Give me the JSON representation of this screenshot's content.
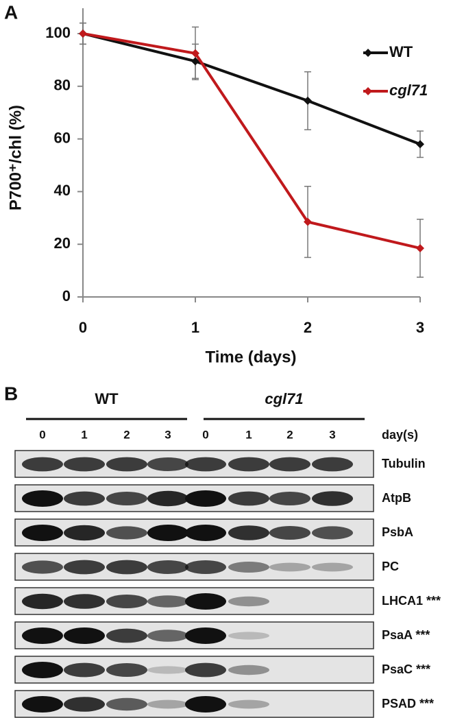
{
  "panel_a": {
    "label": "A"
  },
  "chart_data": {
    "type": "line",
    "x_label": "Time (days)",
    "y_label": "P700⁺/chl (%)",
    "x": [
      0,
      1,
      2,
      3
    ],
    "xlim": [
      0,
      3
    ],
    "xticks": [
      0,
      1,
      2,
      3
    ],
    "ylim": [
      0,
      110
    ],
    "yticks": [
      0,
      20,
      40,
      60,
      80,
      100
    ],
    "series": [
      {
        "name": "WT",
        "color": "#111111",
        "values": [
          100,
          89.5,
          74.5,
          58
        ],
        "errors": [
          4,
          6.5,
          11,
          5
        ]
      },
      {
        "name": "cgl71",
        "color": "#c0191c",
        "values": [
          100,
          92.5,
          28.5,
          18.5
        ],
        "errors": [
          4,
          10,
          13.5,
          11
        ]
      }
    ]
  },
  "panel_b": {
    "label": "B",
    "groups": [
      "WT",
      "cgl71"
    ],
    "lanes": [
      "0",
      "1",
      "2",
      "3",
      "0",
      "1",
      "2",
      "3"
    ],
    "lane_header": "day(s)",
    "rows": [
      "Tubulin",
      "AtpB",
      "PsbA",
      "PC",
      "LHCA1 ***",
      "PsaA ***",
      "PsaC ***",
      "PSAD ***"
    ]
  }
}
